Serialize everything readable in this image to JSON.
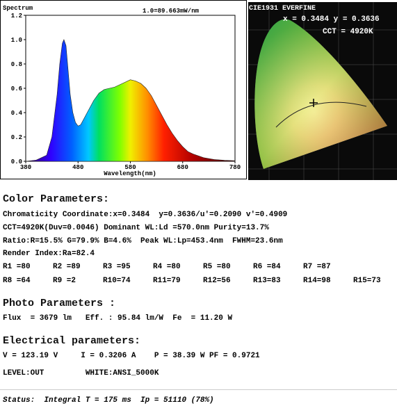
{
  "chart_data": {
    "type": "area",
    "title": "Spectrum",
    "annotation": "1.0=89.663mW/nm",
    "x_label": "Wavelength(nm)",
    "x": [
      380,
      400,
      420,
      430,
      440,
      445,
      450,
      453,
      457,
      460,
      465,
      470,
      475,
      480,
      485,
      490,
      500,
      510,
      520,
      530,
      540,
      550,
      560,
      570,
      580,
      590,
      600,
      610,
      620,
      630,
      640,
      650,
      660,
      670,
      680,
      690,
      700,
      720,
      740,
      760,
      780
    ],
    "values": [
      0,
      0.01,
      0.05,
      0.2,
      0.55,
      0.8,
      0.97,
      1.0,
      0.95,
      0.8,
      0.55,
      0.4,
      0.32,
      0.29,
      0.3,
      0.34,
      0.42,
      0.5,
      0.56,
      0.59,
      0.6,
      0.61,
      0.63,
      0.65,
      0.67,
      0.66,
      0.64,
      0.6,
      0.54,
      0.46,
      0.38,
      0.3,
      0.23,
      0.17,
      0.12,
      0.08,
      0.06,
      0.03,
      0.015,
      0.008,
      0.005
    ],
    "xlim": [
      380,
      780
    ],
    "xticks": [
      380,
      480,
      580,
      680,
      780
    ],
    "ylim": [
      0,
      1.2
    ],
    "yticks": [
      {
        "value": 0,
        "label": "0.0"
      },
      0.2,
      0.4,
      0.6,
      0.8,
      {
        "value": 1,
        "label": "1.0"
      },
      1.2
    ]
  },
  "cie": {
    "title": "CIE1931 EVERFINE",
    "coords": "x = 0.3484 y = 0.3636",
    "cct": "CCT = 4920K"
  },
  "color_parameters": {
    "heading": "Color Parameters:",
    "lines": [
      "Chromaticity Coordinate:x=0.3484  y=0.3636/u'=0.2090 v'=0.4909",
      "CCT=4920K(Duv=0.0046) Dominant WL:Ld =570.0nm Purity=13.7%",
      "Ratio:R=15.5% G=79.9% B=4.6%  Peak WL:Lp=453.4nm  FWHM=23.6nm",
      "Render Index:Ra=82.4"
    ],
    "render_rows": [
      [
        "R1 =80",
        "R2 =89",
        "R3 =95",
        "R4 =80",
        "R5 =80",
        "R6 =84",
        "R7 =87"
      ],
      [
        "R8 =64",
        "R9 =2",
        "R10=74",
        "R11=79",
        "R12=56",
        "R13=83",
        "R14=98",
        "R15=73"
      ]
    ]
  },
  "photo_parameters": {
    "heading": "Photo Parameters :",
    "line": "Flux  = 3679 lm   Eff. : 95.84 lm/W  Fe  = 11.20 W"
  },
  "electrical_parameters": {
    "heading": "Electrical parameters:",
    "line": "V = 123.19 V     I = 0.3206 A    P = 38.39 W PF = 0.9721",
    "level": "LEVEL:OUT         WHITE:ANSI_5000K"
  },
  "status": "Status:  Integral T = 175 ms  Ip = 51110 (78%)"
}
